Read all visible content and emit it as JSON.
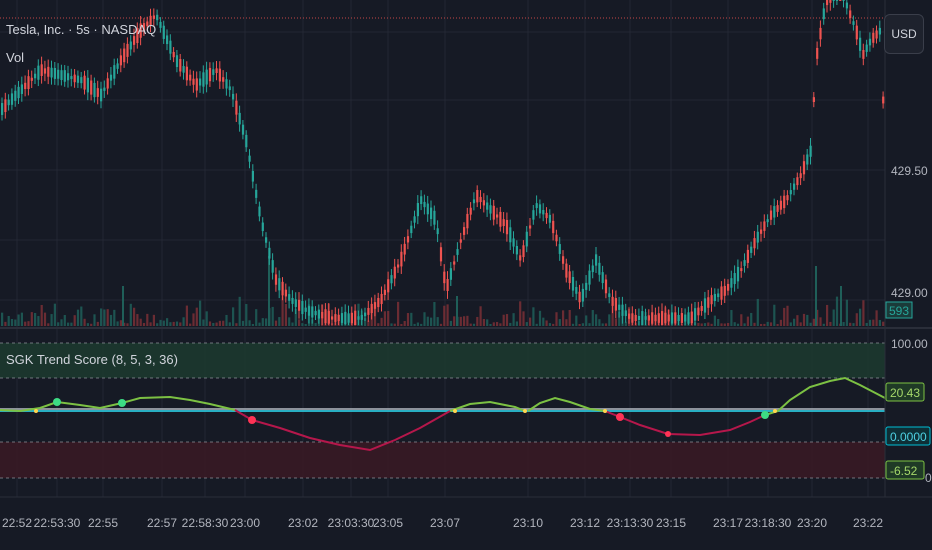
{
  "header": {
    "symbol_line": "Tesla, Inc. · 5s · NASDAQ",
    "volume_label": "Vol",
    "currency_button": "USD"
  },
  "price_axis": {
    "labels": [
      "429.50",
      "429.00"
    ],
    "volume_tag": "593"
  },
  "indicator": {
    "title": "SGK Trend Score (8, 5, 3, 36)",
    "axis_labels": [
      "100.00",
      "0"
    ],
    "value_tags": [
      "20.43",
      "0.0000",
      "-6.52"
    ]
  },
  "time_axis": {
    "labels": [
      "22:52",
      "22:53:30",
      "22:55",
      "22:57",
      "22:58:30",
      "23:00",
      "23:02",
      "23:03:30",
      "23:05",
      "23:07",
      "23:10",
      "23:12",
      "23:13:30",
      "23:15",
      "23:17",
      "23:18:30",
      "23:20",
      "23:22"
    ]
  },
  "colors": {
    "background": "#161a25",
    "up": "#26a69a",
    "down": "#ef5350",
    "score_positive": "#7cc143",
    "score_negative": "#b5174b",
    "zero_line": "#00bcd4",
    "upper_zone": "#1c3b2f",
    "lower_zone": "#3a1a25"
  },
  "icons": [
    "currency-button"
  ]
}
